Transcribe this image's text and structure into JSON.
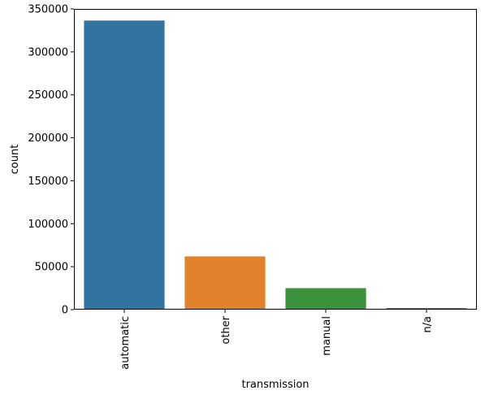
{
  "chart_data": {
    "type": "bar",
    "title": "",
    "xlabel": "transmission",
    "ylabel": "count",
    "categories": [
      "automatic",
      "other",
      "manual",
      "n/a"
    ],
    "values": [
      336500,
      62000,
      25000,
      1800
    ],
    "colors": [
      "#3274a1",
      "#e1812c",
      "#3a923a",
      "#c03d3e"
    ],
    "ylim": [
      0,
      350000
    ],
    "yticks": [
      0,
      50000,
      100000,
      150000,
      200000,
      250000,
      300000,
      350000
    ],
    "ytick_labels": [
      "0",
      "50000",
      "100000",
      "150000",
      "200000",
      "250000",
      "300000",
      "350000"
    ],
    "grid": false,
    "legend": "none"
  }
}
